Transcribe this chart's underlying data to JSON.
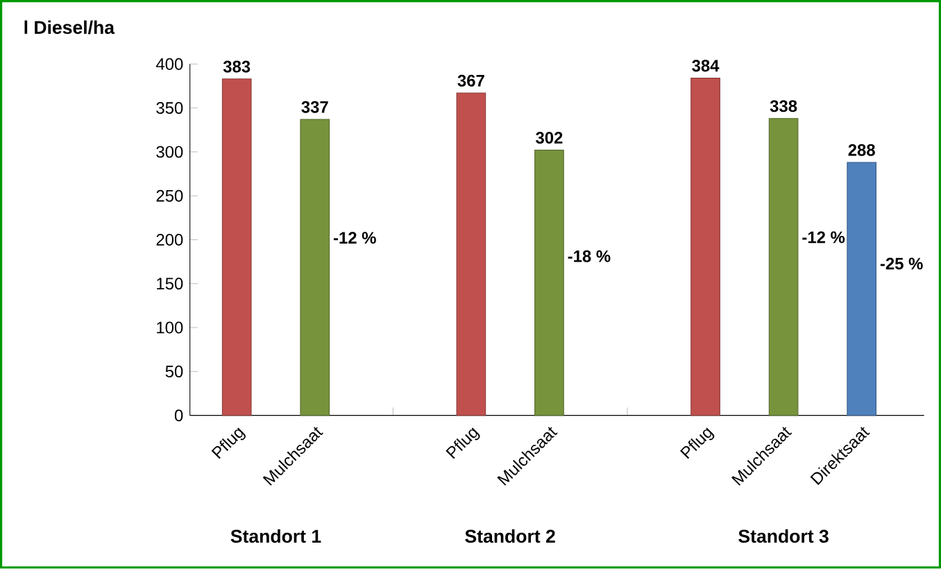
{
  "chart_data": {
    "type": "bar",
    "ylabel": "l Diesel/ha",
    "categories": [
      "Pflug",
      "Mulchsaat",
      null,
      "Pflug",
      "Mulchsaat",
      null,
      "Pflug",
      "Mulchsaat",
      "Direktsaat"
    ],
    "values": [
      383,
      337,
      null,
      367,
      302,
      null,
      384,
      338,
      288
    ],
    "colors": [
      "#c0504d",
      "#77933c",
      null,
      "#c0504d",
      "#77933c",
      null,
      "#c0504d",
      "#77933c",
      "#4f81bd"
    ],
    "ylim": [
      0,
      400
    ],
    "yticks": [
      0,
      50,
      100,
      150,
      200,
      250,
      300,
      350,
      400
    ],
    "grid": false,
    "data_labels": true,
    "annotations": [
      "-12 %",
      "-18 %",
      "-12 %",
      "-25 %",
      "Standort 1",
      "Standort 2",
      "Standort 3"
    ]
  }
}
